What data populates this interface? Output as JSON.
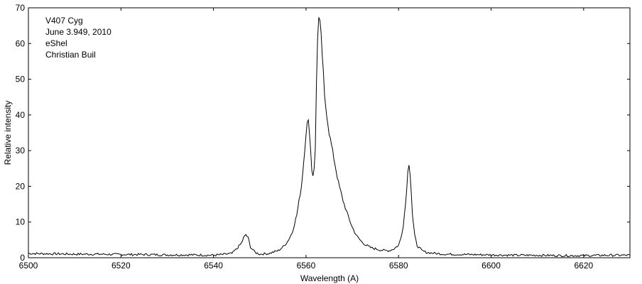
{
  "chart_data": {
    "type": "line",
    "xlabel": "Wavelength (A)",
    "ylabel": "Relative intensity",
    "xlim": [
      6500,
      6630
    ],
    "ylim": [
      0,
      70
    ],
    "xticks": [
      6500,
      6520,
      6540,
      6560,
      6580,
      6600,
      6620
    ],
    "yticks": [
      0,
      10,
      20,
      30,
      40,
      50,
      60,
      70
    ],
    "grid": false,
    "annotations": [
      "V407 Cyg",
      "June 3.949, 2010",
      "eShel",
      "Christian Buil"
    ],
    "line_color": "#000000",
    "series": [
      {
        "x": [
          6500,
          6505,
          6510,
          6515,
          6520,
          6525,
          6530,
          6535,
          6540,
          6542,
          6544,
          6545,
          6546,
          6546.5,
          6547,
          6547.5,
          6548,
          6549,
          6550,
          6552,
          6554,
          6555,
          6556,
          6557,
          6558,
          6559,
          6559.5,
          6560,
          6560.4,
          6560.8,
          6561.2,
          6561.6,
          6562,
          6562.4,
          6562.8,
          6563.2,
          6563.6,
          6564,
          6565,
          6566,
          6567,
          6568,
          6569,
          6570,
          6571,
          6572,
          6573,
          6574,
          6575,
          6576,
          6577,
          6578,
          6579,
          6580,
          6580.5,
          6581,
          6581.5,
          6582,
          6582.3,
          6582.6,
          6583,
          6583.5,
          6584,
          6585,
          6586,
          6588,
          6590,
          6595,
          6600,
          6605,
          6610,
          6615,
          6620,
          6625,
          6630
        ],
        "y": [
          1.2,
          1.1,
          1.0,
          1.0,
          0.9,
          0.9,
          0.8,
          0.8,
          0.7,
          0.9,
          1.2,
          2.5,
          4.0,
          5.5,
          6.5,
          5.5,
          3.0,
          1.5,
          1.0,
          1.2,
          2.0,
          3.0,
          4.5,
          7.0,
          12.0,
          20.0,
          27.0,
          35.0,
          39.0,
          35.0,
          25.0,
          22.5,
          30.0,
          60.0,
          68.0,
          63.0,
          55.0,
          45.0,
          35.0,
          28.0,
          21.0,
          16.0,
          12.0,
          8.5,
          6.0,
          4.5,
          3.5,
          2.8,
          2.5,
          2.2,
          2.0,
          2.0,
          2.5,
          3.5,
          5.5,
          9.0,
          15.0,
          24.0,
          27.0,
          22.0,
          12.0,
          6.0,
          3.5,
          2.0,
          1.5,
          1.2,
          1.0,
          0.9,
          0.8,
          0.7,
          0.7,
          0.6,
          0.6,
          0.7,
          0.7
        ]
      }
    ]
  }
}
